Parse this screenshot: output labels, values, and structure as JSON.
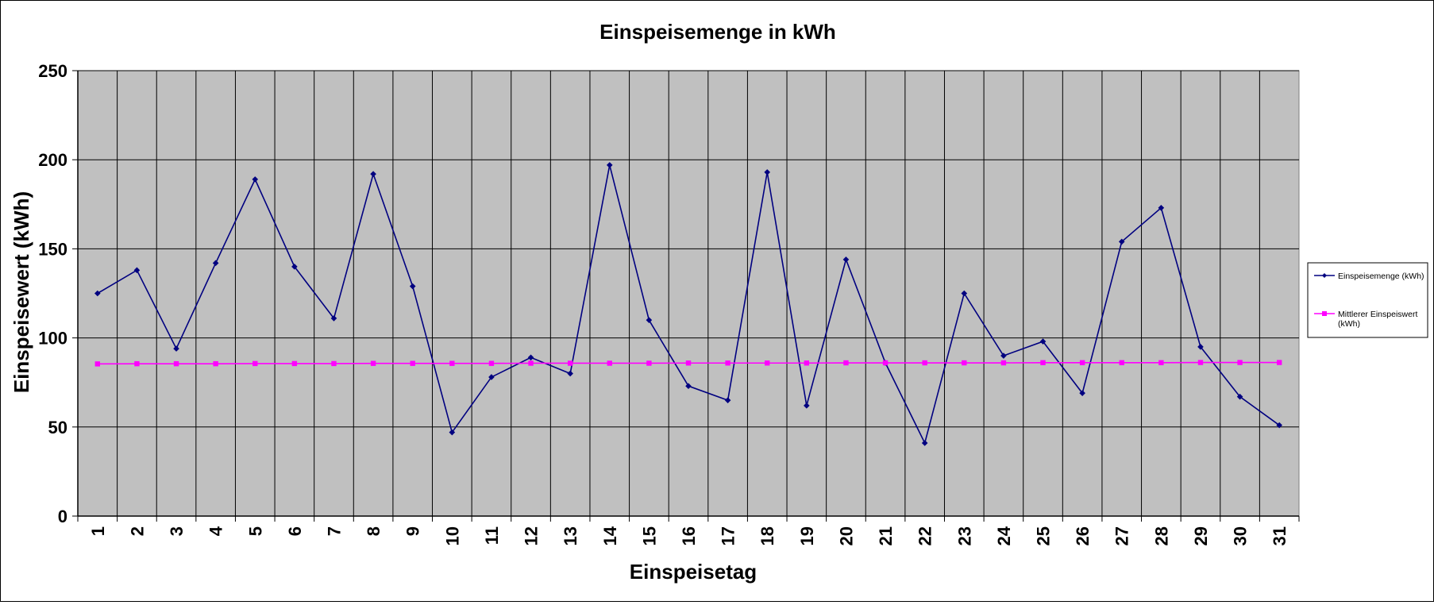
{
  "chart_data": {
    "type": "line",
    "title": "Einspeisemenge in kWh",
    "xlabel": "Einspeisetag",
    "ylabel": "Einspeisewert  (kWh)",
    "ylim": [
      0,
      250
    ],
    "yticks": [
      0,
      50,
      100,
      150,
      200,
      250
    ],
    "grid": true,
    "legend_position": "right",
    "categories": [
      "1",
      "2",
      "3",
      "4",
      "5",
      "6",
      "7",
      "8",
      "9",
      "10",
      "11",
      "12",
      "13",
      "14",
      "15",
      "16",
      "17",
      "18",
      "19",
      "20",
      "21",
      "22",
      "23",
      "24",
      "25",
      "26",
      "27",
      "28",
      "29",
      "30",
      "31"
    ],
    "series": [
      {
        "name": "Einspeisemenge (kWh)",
        "color": "#000080",
        "marker": "diamond",
        "values": [
          125,
          138,
          94,
          142,
          189,
          140,
          111,
          192,
          129,
          47,
          78,
          89,
          80,
          197,
          110,
          73,
          65,
          193,
          62,
          144,
          86,
          41,
          125,
          90,
          98,
          69,
          154,
          173,
          95,
          67,
          51
        ]
      },
      {
        "name": "Mittlerer Einspeiswert (kWh)",
        "color": "#ff00ff",
        "marker": "square",
        "values": [
          85.4,
          85.5,
          85.5,
          85.5,
          85.6,
          85.6,
          85.6,
          85.7,
          85.7,
          85.7,
          85.7,
          85.8,
          85.8,
          85.8,
          85.8,
          85.9,
          85.9,
          85.9,
          85.9,
          86.0,
          86.0,
          86.0,
          86.0,
          86.0,
          86.1,
          86.1,
          86.1,
          86.1,
          86.2,
          86.2,
          86.2
        ]
      }
    ],
    "plot_background": "#c0c0c0"
  }
}
